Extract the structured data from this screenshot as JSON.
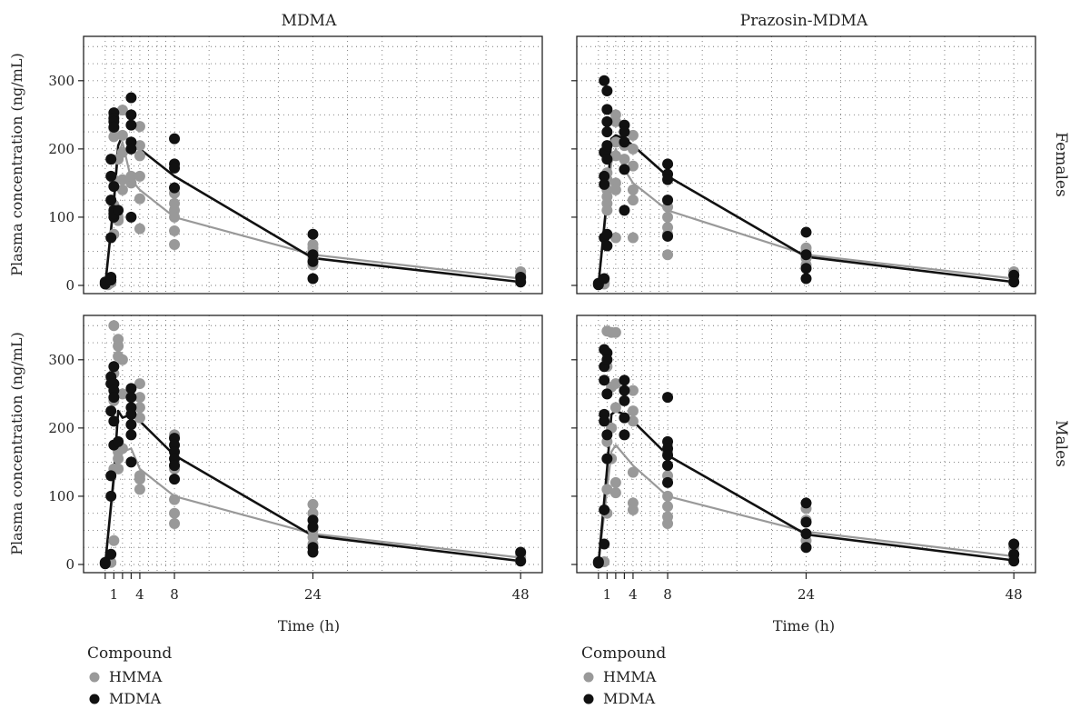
{
  "chart_data": {
    "type": "scatter",
    "facets": {
      "columns": [
        "MDMA",
        "Prazosin-MDMA"
      ],
      "rows": [
        "Females",
        "Males"
      ]
    },
    "xlabel": "Time (h)",
    "ylabel": "Plasma concentration (ng/mL)",
    "x_ticks": [
      1,
      4,
      8,
      24,
      48
    ],
    "y_ticks": [
      0,
      100,
      200,
      300
    ],
    "xlim": [
      -2.5,
      50.5
    ],
    "ylim": [
      -12,
      365
    ],
    "grid": true,
    "legend": {
      "title": "Compound",
      "position": "bottom",
      "entries": [
        {
          "label": "HMMA",
          "color": "#999999"
        },
        {
          "label": "MDMA",
          "color": "#111111"
        }
      ]
    },
    "series_colors": {
      "HMMA": "#999999",
      "MDMA": "#111111"
    },
    "panels": [
      {
        "column": "MDMA",
        "row": "Females",
        "mean_lines": {
          "HMMA": {
            "x": [
              0,
              1,
              1.5,
              2,
              3,
              4,
              8,
              24,
              48
            ],
            "y": [
              0,
              130,
              190,
              210,
              155,
              140,
              100,
              45,
              10
            ]
          },
          "MDMA": {
            "x": [
              0,
              1,
              1.5,
              2,
              3,
              4,
              8,
              24,
              48
            ],
            "y": [
              0,
              120,
              205,
              220,
              210,
              200,
              160,
              40,
              5
            ]
          }
        },
        "points": {
          "HMMA": {
            "x": [
              0,
              0.33,
              0.67,
              0.67,
              1,
              1,
              1,
              1,
              1,
              1,
              1.5,
              1.5,
              1.5,
              2,
              2,
              2,
              2,
              2,
              3,
              3,
              3,
              4,
              4,
              4,
              4,
              4,
              4,
              8,
              8,
              8,
              8,
              8,
              8,
              24,
              24,
              24,
              24,
              24,
              24,
              48,
              48,
              48,
              48
            ],
            "y": [
              3,
              1,
              5,
              4,
              250,
              230,
              218,
              155,
              118,
              75,
              100,
              95,
              185,
              257,
              220,
              195,
              155,
              140,
              210,
              150,
              160,
              233,
              205,
              190,
              160,
              127,
              83,
              135,
              120,
              110,
              100,
              80,
              60,
              60,
              55,
              50,
              45,
              40,
              30,
              20,
              15,
              10,
              5
            ]
          },
          "MDMA": {
            "x": [
              0,
              0,
              0.67,
              0.67,
              0.67,
              0.67,
              0.67,
              0.67,
              1,
              1,
              1,
              1,
              1,
              1,
              1,
              1,
              1.5,
              3,
              3,
              3,
              3,
              3,
              3,
              8,
              8,
              8,
              8,
              24,
              24,
              24,
              24,
              48,
              48
            ],
            "y": [
              5,
              2,
              185,
              160,
              125,
              70,
              12,
              8,
              253,
              245,
              240,
              232,
              145,
              110,
              100,
              105,
              110,
              275,
              250,
              235,
              210,
              200,
              100,
              215,
              178,
              172,
              143,
              75,
              45,
              35,
              10,
              12,
              5
            ]
          }
        }
      },
      {
        "column": "Prazosin-MDMA",
        "row": "Females",
        "mean_lines": {
          "HMMA": {
            "x": [
              0,
              1,
              1.5,
              2,
              3,
              4,
              8,
              24,
              48
            ],
            "y": [
              0,
              120,
              180,
              200,
              170,
              150,
              110,
              45,
              10
            ]
          },
          "MDMA": {
            "x": [
              0,
              1,
              1.5,
              2,
              3,
              4,
              8,
              24,
              48
            ],
            "y": [
              0,
              130,
              215,
              220,
              215,
              205,
              160,
              42,
              5
            ]
          }
        },
        "points": {
          "HMMA": {
            "x": [
              0,
              0.67,
              0.67,
              1,
              1,
              1,
              1,
              1,
              1,
              2,
              2,
              2,
              2,
              2,
              2,
              2,
              3,
              3,
              4,
              4,
              4,
              4,
              4,
              4,
              8,
              8,
              8,
              8,
              8,
              8,
              24,
              24,
              24,
              24,
              24,
              48,
              48,
              48,
              48
            ],
            "y": [
              3,
              4,
              2,
              165,
              155,
              140,
              130,
              120,
              110,
              250,
              240,
              210,
              190,
              150,
              140,
              70,
              205,
              185,
              220,
              200,
              175,
              140,
              125,
              70,
              125,
              115,
              100,
              85,
              75,
              45,
              55,
              50,
              45,
              40,
              30,
              20,
              15,
              10,
              5
            ]
          },
          "MDMA": {
            "x": [
              0,
              0,
              0.67,
              0.67,
              0.67,
              0.67,
              0.67,
              0.67,
              1,
              1,
              1,
              1,
              1,
              1,
              1,
              1,
              3,
              3,
              3,
              3,
              3,
              8,
              8,
              8,
              8,
              8,
              24,
              24,
              24,
              24,
              48,
              48
            ],
            "y": [
              3,
              1,
              300,
              195,
              160,
              148,
              70,
              10,
              285,
              258,
              240,
              225,
              205,
              185,
              75,
              58,
              235,
              225,
              210,
              170,
              110,
              178,
              163,
              155,
              125,
              72,
              78,
              45,
              25,
              10,
              15,
              5
            ]
          }
        }
      },
      {
        "column": "MDMA",
        "row": "Males",
        "mean_lines": {
          "HMMA": {
            "x": [
              0,
              1,
              1.5,
              2,
              3,
              4,
              8,
              24,
              48
            ],
            "y": [
              0,
              120,
              175,
              165,
              170,
              140,
              100,
              45,
              10
            ]
          },
          "MDMA": {
            "x": [
              0,
              1,
              1.5,
              2,
              3,
              4,
              8,
              24,
              48
            ],
            "y": [
              0,
              130,
              225,
              215,
              220,
              210,
              160,
              42,
              5
            ]
          }
        },
        "points": {
          "HMMA": {
            "x": [
              0,
              0.67,
              1,
              1,
              1,
              1,
              1,
              1,
              1.5,
              1.5,
              1.5,
              1.5,
              1.5,
              1.5,
              2,
              2,
              2,
              4,
              4,
              4,
              4,
              4,
              4,
              4,
              8,
              8,
              8,
              8,
              8,
              8,
              24,
              24,
              24,
              24,
              24,
              48,
              48,
              48
            ],
            "y": [
              2,
              3,
              350,
              280,
              265,
              240,
              140,
              35,
              330,
              320,
              305,
              165,
              155,
              140,
              300,
              250,
              170,
              265,
              245,
              230,
              215,
              130,
              125,
              110,
              190,
              145,
              140,
              95,
              75,
              60,
              88,
              75,
              50,
              40,
              30,
              15,
              10,
              5
            ]
          },
          "MDMA": {
            "x": [
              0,
              0,
              0.67,
              0.67,
              0.67,
              0.67,
              0.67,
              0.67,
              1,
              1,
              1,
              1,
              1,
              1,
              1.5,
              3,
              3,
              3,
              3,
              3,
              3,
              3,
              8,
              8,
              8,
              8,
              8,
              8,
              24,
              24,
              24,
              24,
              48,
              48
            ],
            "y": [
              3,
              1,
              275,
              265,
              225,
              130,
              100,
              15,
              290,
              265,
              255,
              245,
              210,
              175,
              180,
              258,
              245,
              230,
              220,
              205,
              190,
              150,
              185,
              175,
              165,
              155,
              145,
              125,
              65,
              55,
              25,
              18,
              18,
              5
            ]
          }
        }
      },
      {
        "column": "Prazosin-MDMA",
        "row": "Males",
        "mean_lines": {
          "HMMA": {
            "x": [
              0,
              1,
              1.5,
              2,
              3,
              4,
              8,
              24,
              48
            ],
            "y": [
              0,
              110,
              165,
              175,
              160,
              145,
              100,
              48,
              12
            ]
          },
          "MDMA": {
            "x": [
              0,
              1,
              1.5,
              2,
              3,
              4,
              8,
              24,
              48
            ],
            "y": [
              0,
              140,
              220,
              225,
              220,
              210,
              160,
              44,
              6
            ]
          }
        },
        "points": {
          "HMMA": {
            "x": [
              0,
              0.67,
              1,
              1,
              1,
              1,
              1,
              1,
              1.5,
              1.5,
              1.5,
              1.5,
              2,
              2,
              2,
              2,
              2,
              4,
              4,
              4,
              4,
              4,
              4,
              8,
              8,
              8,
              8,
              8,
              8,
              8,
              24,
              24,
              24,
              24,
              24,
              48,
              48,
              48
            ],
            "y": [
              3,
              4,
              342,
              290,
              250,
              180,
              110,
              75,
              340,
              260,
              200,
              155,
              340,
              265,
              230,
              120,
              105,
              255,
              225,
              210,
              135,
              90,
              80,
              165,
              145,
              130,
              100,
              85,
              70,
              60,
              82,
              65,
              45,
              35,
              25,
              25,
              15,
              10
            ]
          },
          "MDMA": {
            "x": [
              0,
              0,
              0.67,
              0.67,
              0.67,
              0.67,
              0.67,
              0.67,
              0.67,
              1,
              1,
              1,
              1,
              1,
              3,
              3,
              3,
              3,
              3,
              8,
              8,
              8,
              8,
              8,
              8,
              24,
              24,
              24,
              24,
              48,
              48,
              48
            ],
            "y": [
              4,
              2,
              315,
              290,
              270,
              220,
              210,
              80,
              30,
              310,
              300,
              250,
              190,
              155,
              270,
              255,
              240,
              215,
              190,
              245,
              180,
              170,
              160,
              145,
              120,
              90,
              62,
              45,
              25,
              30,
              15,
              5
            ]
          }
        }
      }
    ]
  }
}
